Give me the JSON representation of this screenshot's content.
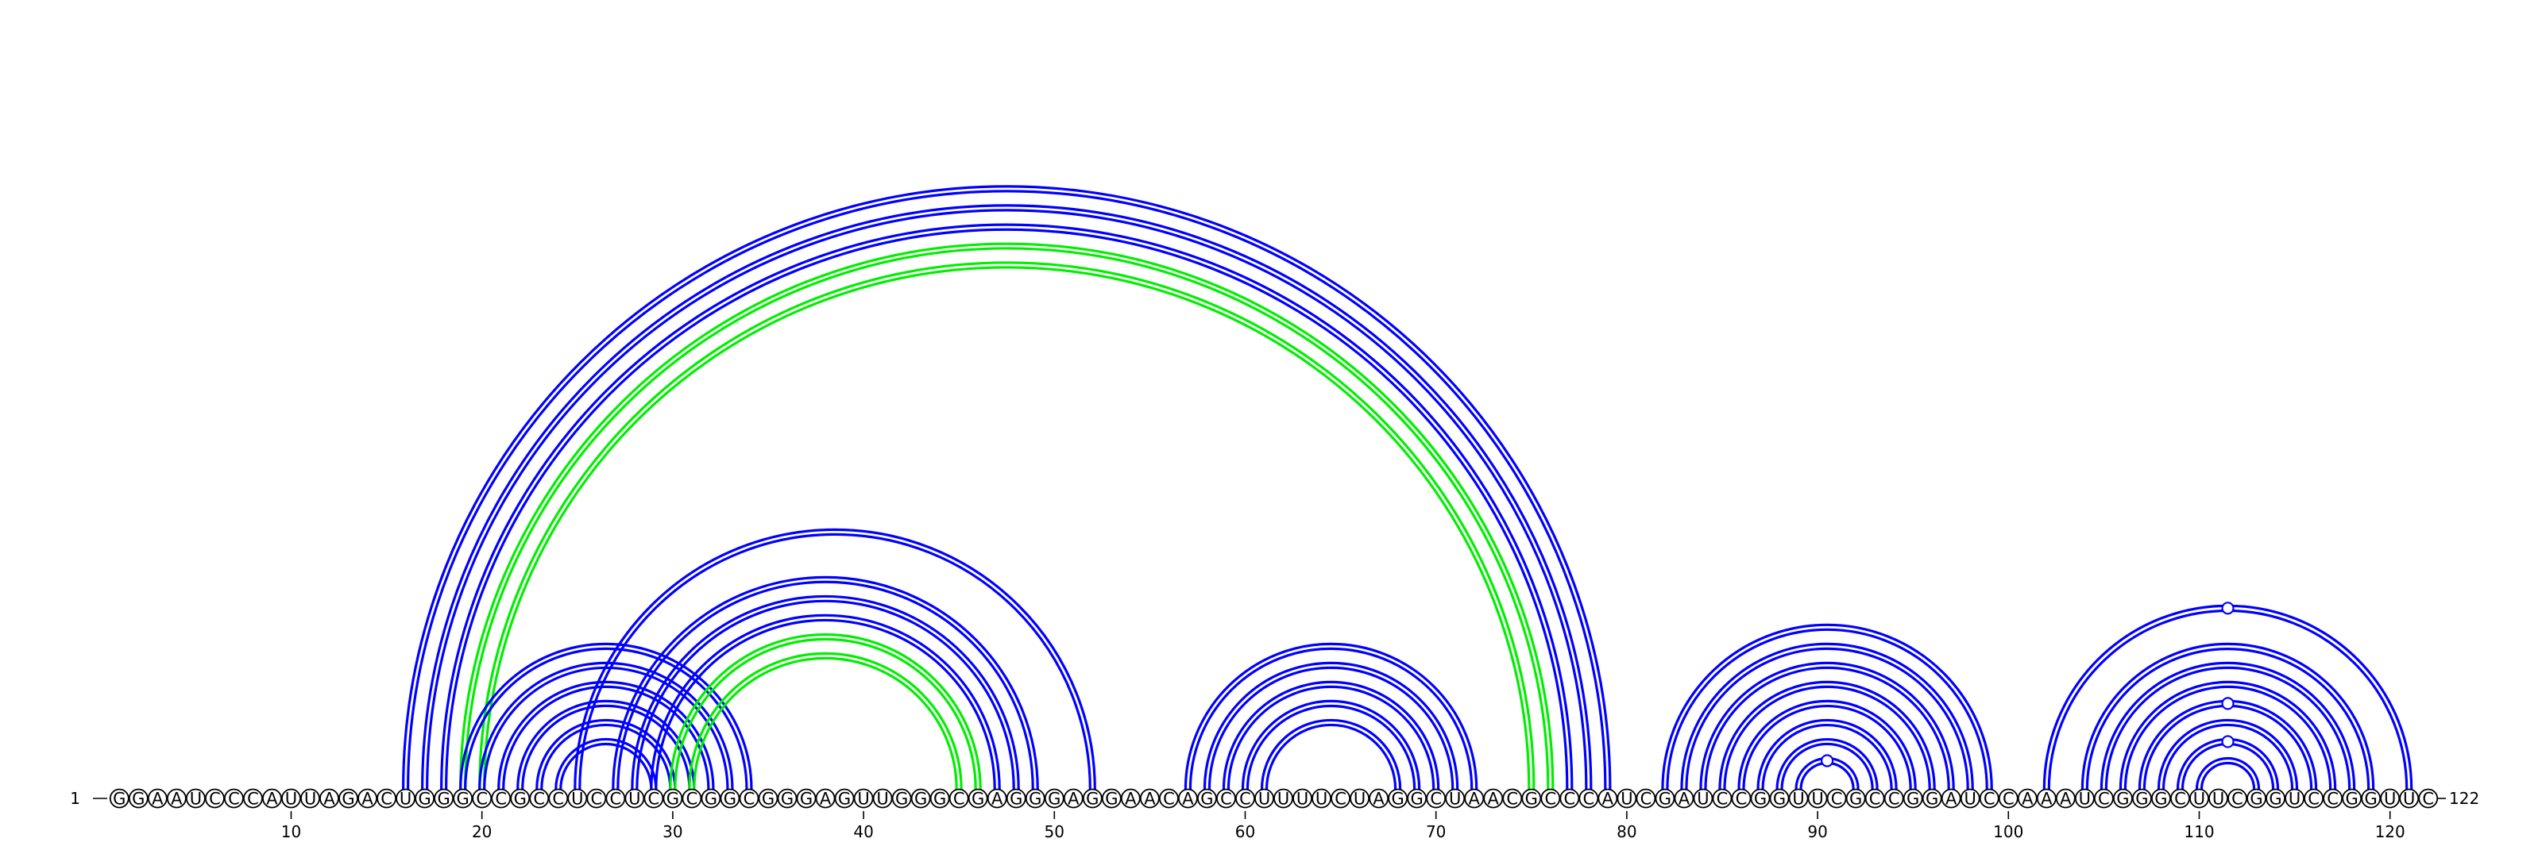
{
  "sequence": "GGAAUCCCAUUAGACUGGGCCGCCUCCUCGCGGCGGGAGUUGGGCGAGGGAGGAACAGCCUUUUCUAGGCUAACGCCCAUCGAUCCGGUUCGCCGGAUCCAAAUCGGGCUUCGGUCCGGUUC",
  "start_label": "1",
  "end_label": "122",
  "ticks": [
    {
      "pos": 10,
      "label": "10"
    },
    {
      "pos": 20,
      "label": "20"
    },
    {
      "pos": 30,
      "label": "30"
    },
    {
      "pos": 40,
      "label": "40"
    },
    {
      "pos": 50,
      "label": "50"
    },
    {
      "pos": 60,
      "label": "60"
    },
    {
      "pos": 70,
      "label": "70"
    },
    {
      "pos": 80,
      "label": "80"
    },
    {
      "pos": 90,
      "label": "90"
    },
    {
      "pos": 100,
      "label": "100"
    },
    {
      "pos": 110,
      "label": "110"
    },
    {
      "pos": 120,
      "label": "120"
    }
  ],
  "colors": {
    "blue_pair": "#0000ff",
    "green_pair": "#00ee00",
    "text": "#000000",
    "background": "#ffffff"
  },
  "pairs": [
    {
      "i": 16,
      "j": 79,
      "color": "blue"
    },
    {
      "i": 17,
      "j": 78,
      "color": "blue"
    },
    {
      "i": 18,
      "j": 77,
      "color": "blue"
    },
    {
      "i": 19,
      "j": 76,
      "color": "green"
    },
    {
      "i": 20,
      "j": 75,
      "color": "green"
    },
    {
      "i": 19,
      "j": 34,
      "color": "blue"
    },
    {
      "i": 20,
      "j": 33,
      "color": "blue"
    },
    {
      "i": 21,
      "j": 32,
      "color": "blue"
    },
    {
      "i": 22,
      "j": 31,
      "color": "blue"
    },
    {
      "i": 23,
      "j": 30,
      "color": "blue"
    },
    {
      "i": 24,
      "j": 29,
      "color": "blue"
    },
    {
      "i": 25,
      "j": 52,
      "color": "blue"
    },
    {
      "i": 27,
      "j": 49,
      "color": "blue"
    },
    {
      "i": 28,
      "j": 48,
      "color": "blue"
    },
    {
      "i": 29,
      "j": 47,
      "color": "blue"
    },
    {
      "i": 30,
      "j": 46,
      "color": "green"
    },
    {
      "i": 31,
      "j": 45,
      "color": "green"
    },
    {
      "i": 57,
      "j": 72,
      "color": "blue"
    },
    {
      "i": 58,
      "j": 71,
      "color": "blue"
    },
    {
      "i": 59,
      "j": 70,
      "color": "blue"
    },
    {
      "i": 60,
      "j": 69,
      "color": "blue"
    },
    {
      "i": 61,
      "j": 68,
      "color": "blue"
    },
    {
      "i": 82,
      "j": 99,
      "color": "blue"
    },
    {
      "i": 83,
      "j": 98,
      "color": "blue"
    },
    {
      "i": 84,
      "j": 97,
      "color": "blue"
    },
    {
      "i": 85,
      "j": 96,
      "color": "blue"
    },
    {
      "i": 86,
      "j": 95,
      "color": "blue"
    },
    {
      "i": 87,
      "j": 94,
      "color": "blue"
    },
    {
      "i": 88,
      "j": 93,
      "color": "blue"
    },
    {
      "i": 89,
      "j": 92,
      "color": "blue"
    },
    {
      "i": 102,
      "j": 121,
      "color": "blue"
    },
    {
      "i": 104,
      "j": 119,
      "color": "blue"
    },
    {
      "i": 105,
      "j": 118,
      "color": "blue"
    },
    {
      "i": 106,
      "j": 117,
      "color": "blue"
    },
    {
      "i": 107,
      "j": 116,
      "color": "blue"
    },
    {
      "i": 108,
      "j": 115,
      "color": "blue"
    },
    {
      "i": 109,
      "j": 114,
      "color": "blue"
    },
    {
      "i": 110,
      "j": 113,
      "color": "blue"
    }
  ],
  "markers": [
    {
      "i": 89,
      "j": 92
    },
    {
      "i": 102,
      "j": 121
    },
    {
      "i": 107,
      "j": 116
    },
    {
      "i": 109,
      "j": 114
    }
  ]
}
